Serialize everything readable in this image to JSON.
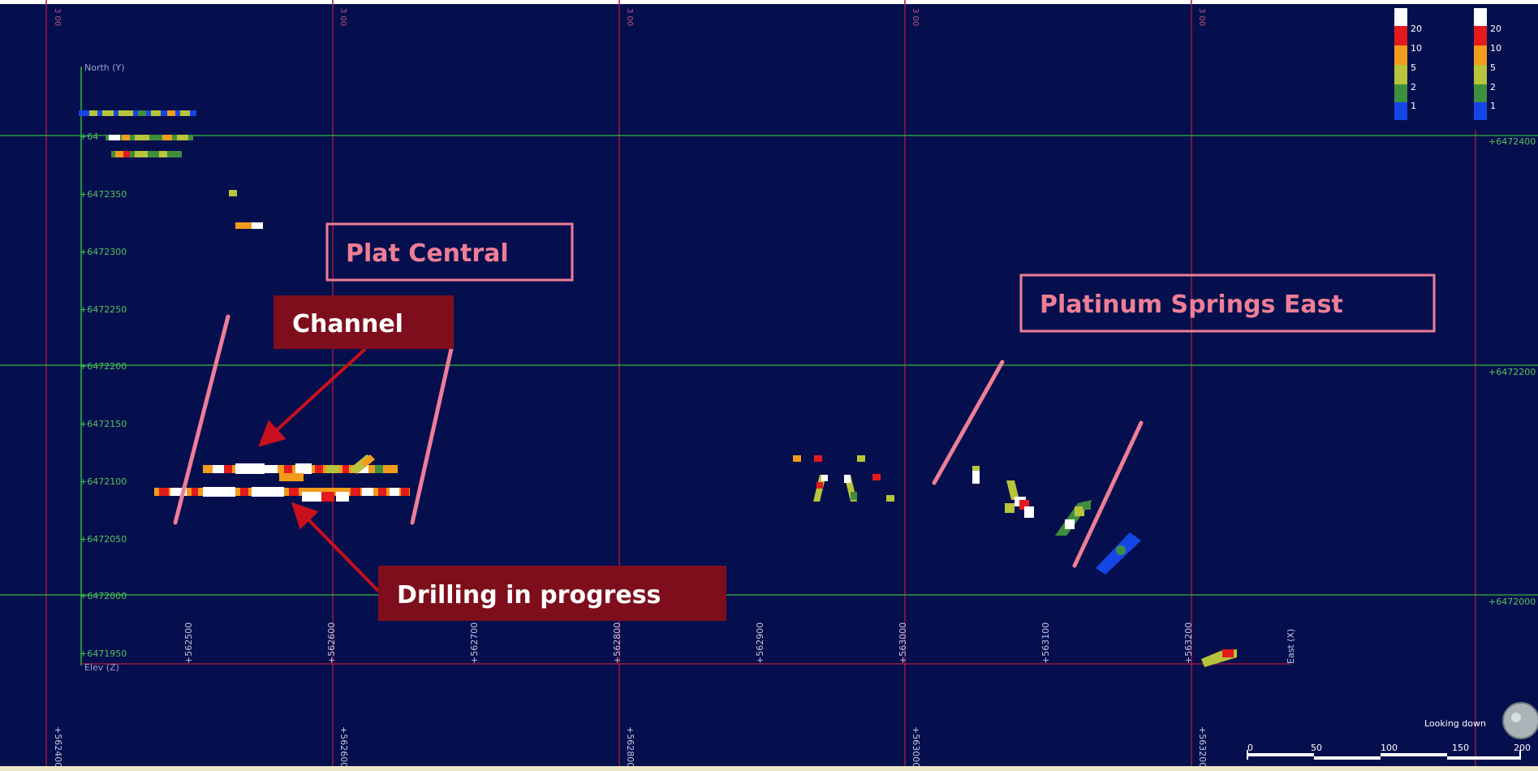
{
  "map": {
    "north_axis_label": "North (Y)",
    "elev_axis_label": "Elev (Z)",
    "east_axis_label": "East (X)",
    "northing_ticks": [
      "+6472350",
      "+6472300",
      "+6472250",
      "+6472200",
      "+6472150",
      "+6472100",
      "+6472050",
      "+6472000",
      "+6471950"
    ],
    "northing_tick_top_partial": "+64",
    "easting_ticks": [
      "+562500",
      "+562600",
      "+562700",
      "+562800",
      "+562900",
      "+563000",
      "+563100",
      "+563200"
    ],
    "right_northing_labels": [
      "+6472400",
      "+6472200",
      "+6472000"
    ],
    "bottom_grid_labels": [
      "+562400",
      "+562600",
      "+562800",
      "+563000",
      "+563200"
    ],
    "looking_direction": "Looking down",
    "scale_bar": {
      "labels": [
        "0",
        "50",
        "100",
        "150",
        "200"
      ]
    }
  },
  "legends": [
    {
      "labels": [
        "20",
        "10",
        "5",
        "2",
        "1"
      ],
      "colors": [
        "#ffffff",
        "#e41a1c",
        "#f29c1c",
        "#b8c43a",
        "#3d8f3d",
        "#1446e6"
      ]
    },
    {
      "labels": [
        "20",
        "10",
        "5",
        "2",
        "1"
      ],
      "colors": [
        "#ffffff",
        "#e41a1c",
        "#f29c1c",
        "#b8c43a",
        "#3d8f3d",
        "#1446e6"
      ]
    }
  ],
  "annotations": {
    "plat_central": "Plat Central",
    "platinum_springs_east": "Platinum Springs East",
    "channel": "Channel",
    "drilling": "Drilling in progress"
  },
  "colors": {
    "background": "#060f4d",
    "grid_green": "#2db83a",
    "grid_red": "#9a1840",
    "label_pink": "#ee7e96",
    "callout_dark_red": "#7f0e1d",
    "arrow_red": "#c8101e"
  }
}
